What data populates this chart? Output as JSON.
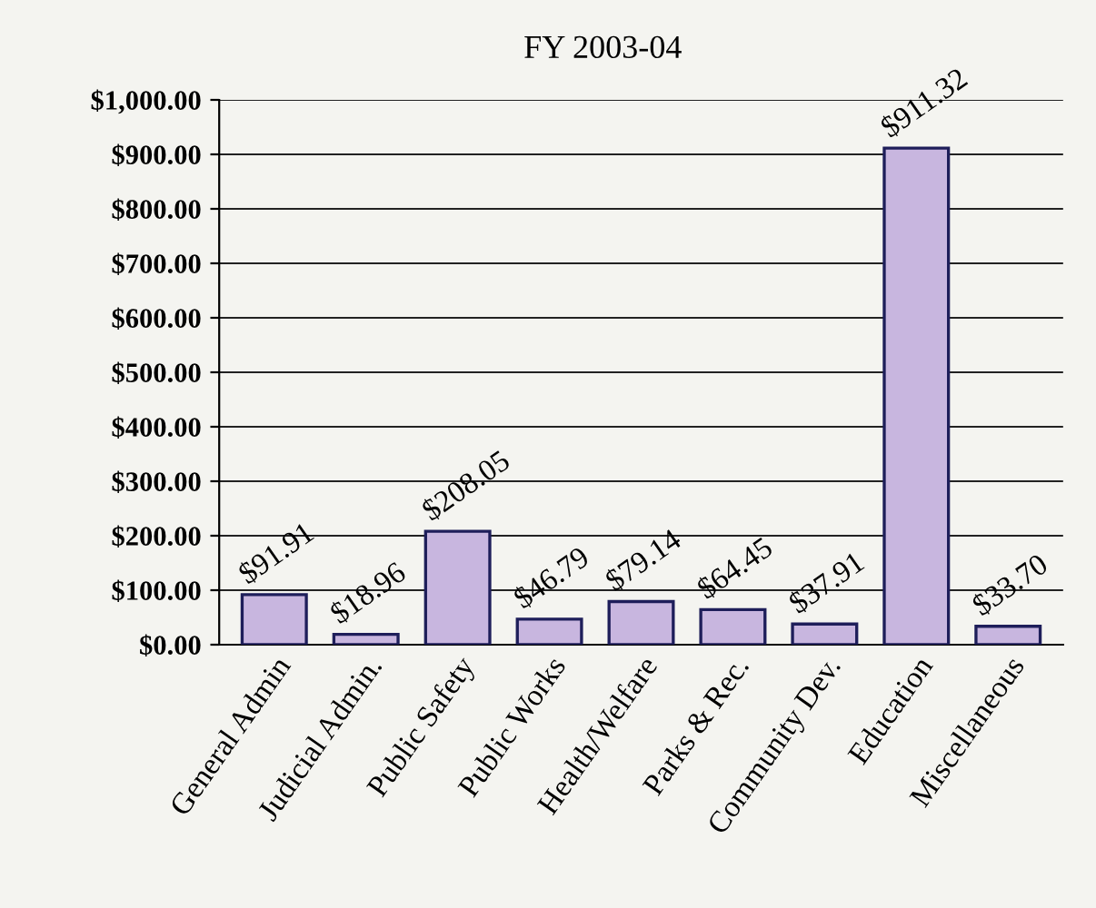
{
  "chart_data": {
    "type": "bar",
    "title": "FY 2003-04",
    "categories": [
      "General Admin",
      "Judicial Admin.",
      "Public Safety",
      "Public Works",
      "Health/Welfare",
      "Parks & Rec.",
      "Community Dev.",
      "Education",
      "Miscellaneous"
    ],
    "values": [
      91.91,
      18.96,
      208.05,
      46.79,
      79.14,
      64.45,
      37.91,
      911.32,
      33.7
    ],
    "value_labels": [
      "$91.91",
      "$18.96",
      "$208.05",
      "$46.79",
      "$79.14",
      "$64.45",
      "$37.91",
      "$911.32",
      "$33.70"
    ],
    "color": "#c8b6df",
    "ylim": [
      0,
      1000
    ],
    "yticks": [
      {
        "value": 0,
        "label": "$0.00"
      },
      {
        "value": 100,
        "label": "$100.00"
      },
      {
        "value": 200,
        "label": "$200.00"
      },
      {
        "value": 300,
        "label": "$300.00"
      },
      {
        "value": 400,
        "label": "$400.00"
      },
      {
        "value": 500,
        "label": "$500.00"
      },
      {
        "value": 600,
        "label": "$600.00"
      },
      {
        "value": 700,
        "label": "$700.00"
      },
      {
        "value": 800,
        "label": "$800.00"
      },
      {
        "value": 900,
        "label": "$900.00"
      },
      {
        "value": 1000,
        "label": "$1,000.00"
      }
    ],
    "grid": "y"
  }
}
